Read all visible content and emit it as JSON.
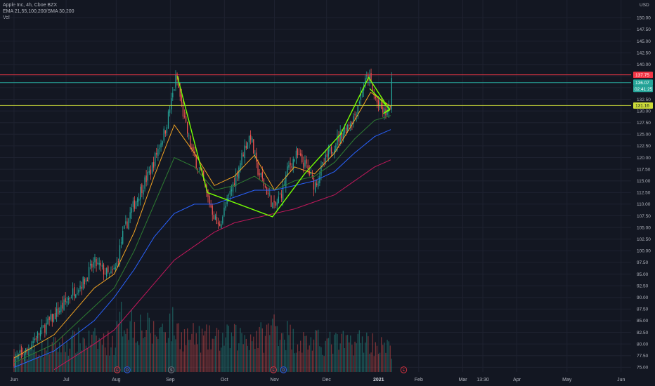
{
  "legend": {
    "title": "Apple Inc, 4h, Cboe BZX",
    "indicators": "EMA 21,55,100,200/SMA 30,200",
    "volume": "Vol"
  },
  "colors": {
    "background": "#131722",
    "grid": "#1e2230",
    "up": "#26a69a",
    "down": "#ef5350",
    "resistance": "#f23645",
    "support": "#cddc39",
    "pattern": "#76ff03",
    "ema21": "#f5a623",
    "ema55": "#2e7d32",
    "ema100": "#2962ff",
    "ema200": "#c2185b"
  },
  "chart_data": {
    "type": "candlestick",
    "symbol": "Apple Inc",
    "interval": "4h",
    "exchange": "Cboe BZX",
    "currency": "USD",
    "y_ticks": [
      75.0,
      77.5,
      80.0,
      82.5,
      85.0,
      87.5,
      90.0,
      92.5,
      95.0,
      97.5,
      100.0,
      102.5,
      105.0,
      107.5,
      110.0,
      112.5,
      115.0,
      117.5,
      120.0,
      122.5,
      125.0,
      127.5,
      130.0,
      132.5,
      135.0,
      137.5,
      140.0,
      142.5,
      145.0,
      147.5,
      150.0
    ],
    "y_tick_labels": [
      "75.00",
      "77.50",
      "80.00",
      "82.50",
      "85.00",
      "87.50",
      "90.00",
      "92.50",
      "95.00",
      "97.50",
      "100.00",
      "102.50",
      "105.00",
      "107.50",
      "110.00",
      "112.50",
      "115.00",
      "117.50",
      "120.00",
      "122.50",
      "125.00",
      "127.50",
      "130.00",
      "132.50",
      "135.00",
      "137.50",
      "140.00",
      "142.50",
      "145.00",
      "147.50",
      "150.00"
    ],
    "ylim": [
      74,
      152
    ],
    "x_tick_labels": [
      "Jun",
      "Jul",
      "Aug",
      "Sep",
      "Oct",
      "Nov",
      "Dec",
      "2021",
      "Feb",
      "Mar",
      "13:30",
      "Apr",
      "May",
      "Jun"
    ],
    "x_ticks": [
      0,
      2.6,
      5.1,
      7.8,
      10.5,
      13.0,
      15.6,
      18.2,
      20.2,
      22.4,
      23.4,
      25.1,
      27.6,
      30.3
    ],
    "xlim": [
      -0.7,
      30.8
    ],
    "price_path": [
      [
        0.0,
        76.5
      ],
      [
        0.6,
        78.5
      ],
      [
        1.0,
        81
      ],
      [
        1.5,
        83.5
      ],
      [
        2.0,
        86
      ],
      [
        2.5,
        88.5
      ],
      [
        3.0,
        91.5
      ],
      [
        3.5,
        93.5
      ],
      [
        4.0,
        97.5
      ],
      [
        4.4,
        96
      ],
      [
        4.8,
        94.5
      ],
      [
        5.1,
        96.5
      ],
      [
        5.4,
        103
      ],
      [
        5.8,
        108
      ],
      [
        6.3,
        113
      ],
      [
        6.8,
        117
      ],
      [
        7.2,
        122
      ],
      [
        7.55,
        126
      ],
      [
        7.85,
        132
      ],
      [
        8.1,
        137.5
      ],
      [
        8.5,
        128
      ],
      [
        8.9,
        121
      ],
      [
        9.3,
        117
      ],
      [
        9.7,
        111
      ],
      [
        10.2,
        105
      ],
      [
        10.6,
        110
      ],
      [
        11.0,
        115
      ],
      [
        11.5,
        122
      ],
      [
        11.8,
        125
      ],
      [
        12.1,
        118
      ],
      [
        12.5,
        114
      ],
      [
        13.0,
        109
      ],
      [
        13.4,
        113
      ],
      [
        13.7,
        118
      ],
      [
        14.1,
        120.5
      ],
      [
        14.6,
        118
      ],
      [
        15.0,
        114
      ],
      [
        15.5,
        119
      ],
      [
        16.0,
        123
      ],
      [
        16.5,
        126
      ],
      [
        17.0,
        129
      ],
      [
        17.4,
        135
      ],
      [
        17.7,
        137.7
      ],
      [
        17.9,
        134
      ],
      [
        18.2,
        131
      ],
      [
        18.5,
        129.5
      ],
      [
        18.75,
        130
      ],
      [
        18.85,
        136
      ]
    ],
    "volume_profile": [
      [
        0.0,
        0.3
      ],
      [
        2.0,
        0.4
      ],
      [
        3.5,
        0.5
      ],
      [
        5.0,
        0.45
      ],
      [
        5.4,
        0.85
      ],
      [
        7.0,
        0.6
      ],
      [
        7.8,
        0.75
      ],
      [
        8.5,
        0.55
      ],
      [
        10.0,
        0.5
      ],
      [
        11.5,
        0.55
      ],
      [
        12.5,
        0.55
      ],
      [
        13.0,
        0.75
      ],
      [
        14.0,
        0.5
      ],
      [
        15.5,
        0.45
      ],
      [
        16.5,
        0.45
      ],
      [
        17.5,
        0.5
      ],
      [
        18.8,
        0.35
      ]
    ],
    "horizontal_lines": [
      {
        "price": 137.75,
        "label": "137.75",
        "color": "#f23645"
      },
      {
        "price": 136.07,
        "label": "136.07",
        "color": "#26a69a"
      },
      {
        "price": 131.16,
        "label": "131.16",
        "color": "#cddc39"
      }
    ],
    "countdown": "02:41:25",
    "pattern_line": [
      [
        8.15,
        137.5
      ],
      [
        9.65,
        112.5
      ],
      [
        12.9,
        107.3
      ],
      [
        14.5,
        116.5
      ],
      [
        16.3,
        125
      ],
      [
        17.7,
        137.2
      ],
      [
        18.75,
        130.2
      ],
      [
        18.45,
        129.5
      ],
      [
        18.75,
        130.4
      ],
      [
        17.75,
        134.8
      ]
    ],
    "ema_lines": {
      "ema21": [
        [
          0,
          77
        ],
        [
          2,
          82
        ],
        [
          4,
          92
        ],
        [
          5,
          95
        ],
        [
          6,
          104
        ],
        [
          7,
          116
        ],
        [
          8,
          127
        ],
        [
          9,
          121
        ],
        [
          10,
          114
        ],
        [
          11,
          116
        ],
        [
          12,
          120.5
        ],
        [
          13,
          113
        ],
        [
          14,
          118
        ],
        [
          15,
          116.5
        ],
        [
          16,
          121
        ],
        [
          17,
          128
        ],
        [
          17.8,
          134
        ],
        [
          18.8,
          131
        ]
      ],
      "ema55": [
        [
          0,
          76
        ],
        [
          2,
          80
        ],
        [
          4,
          88
        ],
        [
          5,
          92
        ],
        [
          6,
          100
        ],
        [
          7,
          110
        ],
        [
          8,
          120
        ],
        [
          9,
          118
        ],
        [
          10,
          113
        ],
        [
          11,
          114
        ],
        [
          12,
          116
        ],
        [
          13,
          113
        ],
        [
          14,
          115
        ],
        [
          15,
          116
        ],
        [
          16,
          119
        ],
        [
          17,
          124
        ],
        [
          18,
          128
        ],
        [
          18.8,
          129
        ]
      ],
      "ema100": [
        [
          0,
          75
        ],
        [
          2,
          78.5
        ],
        [
          4,
          85
        ],
        [
          5,
          90
        ],
        [
          6,
          96
        ],
        [
          7,
          103
        ],
        [
          8,
          108
        ],
        [
          9,
          110
        ],
        [
          10,
          110
        ],
        [
          11,
          111.5
        ],
        [
          12,
          113
        ],
        [
          13,
          113
        ],
        [
          14,
          114
        ],
        [
          15,
          115
        ],
        [
          16,
          117
        ],
        [
          17,
          121
        ],
        [
          18,
          124.5
        ],
        [
          18.8,
          126
        ]
      ],
      "ema200": [
        [
          2,
          74.5
        ],
        [
          4,
          80
        ],
        [
          5,
          83
        ],
        [
          6,
          88
        ],
        [
          7,
          93
        ],
        [
          8,
          98
        ],
        [
          9,
          101
        ],
        [
          10,
          104
        ],
        [
          11,
          106
        ],
        [
          12,
          107
        ],
        [
          13,
          108
        ],
        [
          14,
          109
        ],
        [
          15,
          110.5
        ],
        [
          16,
          112
        ],
        [
          17,
          115
        ],
        [
          18,
          118
        ],
        [
          18.8,
          119.5
        ]
      ]
    },
    "events": [
      {
        "x": 5.15,
        "letter": "E",
        "kind": "earnings"
      },
      {
        "x": 5.65,
        "letter": "D",
        "kind": "dividend"
      },
      {
        "x": 7.85,
        "letter": "S",
        "kind": "split"
      },
      {
        "x": 12.95,
        "letter": "E",
        "kind": "earnings"
      },
      {
        "x": 13.45,
        "letter": "D",
        "kind": "dividend"
      },
      {
        "x": 19.45,
        "letter": "E",
        "kind": "earnings-upcoming"
      }
    ]
  }
}
